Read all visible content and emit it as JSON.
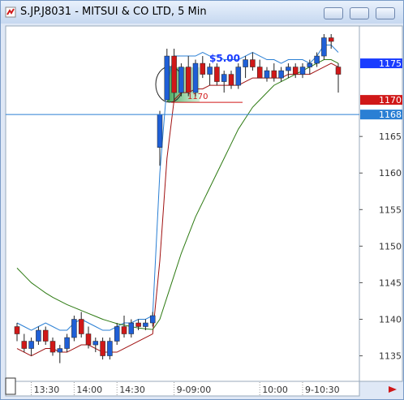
{
  "window_title": "S.JP.J8031 - MITSUI & CO LTD, 5 Min",
  "chart_data": {
    "type": "candlestick",
    "categories": [
      null,
      null,
      "13:30",
      null,
      null,
      null,
      null,
      null,
      "14:00",
      null,
      null,
      null,
      null,
      null,
      "14:30",
      null,
      null,
      null,
      null,
      null,
      null,
      null,
      "9-09:00",
      null,
      null,
      null,
      null,
      null,
      null,
      null,
      null,
      null,
      null,
      null,
      "10:00",
      null,
      null,
      null,
      null,
      null,
      "9-10:30",
      null,
      null,
      null,
      null,
      null
    ],
    "open": [
      1139,
      1137,
      1136,
      1137,
      1138.5,
      1137,
      1135.5,
      1136,
      1137.5,
      1140,
      1138,
      1136.5,
      1137,
      1135,
      1137,
      1139,
      1138,
      1139.5,
      1139,
      1139.5,
      1163.5,
      1170,
      1176,
      1171,
      1174.5,
      1171,
      1175,
      1173.5,
      1174.5,
      1172.5,
      1173.5,
      1172,
      1174.5,
      1175.5,
      1174.5,
      1173,
      1174,
      1173,
      1174,
      1174.5,
      1173.5,
      1174.5,
      1175,
      1176,
      1178.5,
      1174.5
    ],
    "high": [
      1139.5,
      1138,
      1137.5,
      1139,
      1139,
      1137.5,
      1136.5,
      1138,
      1140.5,
      1141,
      1139,
      1137.5,
      1137.5,
      1137.5,
      1139.5,
      1140.5,
      1140,
      1140,
      1140,
      1141,
      1168.5,
      1177,
      1177,
      1175,
      1176,
      1175.5,
      1176,
      1175,
      1175,
      1174,
      1174,
      1175,
      1176,
      1176.5,
      1175.5,
      1174.5,
      1175,
      1174.5,
      1175,
      1175,
      1175,
      1175.5,
      1176.5,
      1179,
      1179,
      1175
    ],
    "low": [
      1137,
      1135.5,
      1135,
      1136.5,
      1136.5,
      1135,
      1134,
      1135.5,
      1137,
      1137.5,
      1136,
      1135.5,
      1134.5,
      1134.5,
      1136.5,
      1137.5,
      1137.5,
      1138.5,
      1138.5,
      1139,
      1161,
      1170,
      1170,
      1170.5,
      1170.5,
      1170.5,
      1173,
      1172,
      1172,
      1171,
      1171.5,
      1171.5,
      1173,
      1174,
      1173,
      1172.5,
      1172.5,
      1172.5,
      1173,
      1173,
      1173,
      1173.5,
      1174.5,
      1175.5,
      1177,
      1171
    ],
    "close": [
      1138,
      1136,
      1137,
      1138.5,
      1137,
      1135.5,
      1136,
      1137.5,
      1140,
      1138,
      1136.5,
      1137,
      1135,
      1137,
      1139,
      1138,
      1139.5,
      1139,
      1139.5,
      1140.5,
      1168,
      1176,
      1171,
      1174.5,
      1171,
      1175,
      1173.5,
      1174.5,
      1172.5,
      1173.5,
      1172,
      1174.5,
      1175.5,
      1174.5,
      1173,
      1174,
      1173,
      1174,
      1174.5,
      1173.5,
      1174.5,
      1175,
      1176,
      1178.5,
      1178,
      1173.5
    ],
    "up_color": "#1f5fd6",
    "down_color": "#d01818",
    "overlays": [
      {
        "color": "#2a7fd4",
        "values": [
          1139.5,
          1139,
          1138.5,
          1139,
          1139.5,
          1139,
          1138.5,
          1138.5,
          1139.5,
          1140,
          1139.5,
          1139,
          1138.5,
          1138.5,
          1139,
          1139.5,
          1139.5,
          1140,
          1140,
          1140.5,
          1160,
          1172,
          1176,
          1176,
          1176,
          1176,
          1176.5,
          1176,
          1176,
          1175.5,
          1175.5,
          1175.5,
          1176,
          1176.5,
          1176,
          1175.5,
          1175.5,
          1175,
          1175.5,
          1175.5,
          1175.5,
          1175,
          1176,
          1177.5,
          1177.5,
          1176.5
        ]
      },
      {
        "color": "#a01010",
        "values": [
          1136,
          1135.5,
          1135,
          1135.5,
          1136,
          1136,
          1135.5,
          1135.5,
          1136,
          1136.5,
          1136.5,
          1136,
          1135.5,
          1135.5,
          1135.5,
          1136,
          1136.5,
          1137,
          1137.5,
          1138,
          1148,
          1162,
          1170,
          1171,
          1171,
          1171.5,
          1171.5,
          1172,
          1172,
          1172,
          1172,
          1172,
          1172.5,
          1173,
          1173,
          1173,
          1173,
          1173,
          1173.5,
          1173.5,
          1173.5,
          1173.5,
          1174,
          1174.5,
          1175,
          1174.5
        ]
      },
      {
        "color": "#2d7a12",
        "values": [
          1147,
          1146,
          1145,
          1144.3,
          1143.6,
          1143,
          1142.5,
          1142,
          1141.6,
          1141.2,
          1140.8,
          1140.4,
          1140,
          1139.7,
          1139.4,
          1139.2,
          1139,
          1138.8,
          1138.7,
          1138.6,
          1140,
          1143,
          1146,
          1149,
          1151.5,
          1154,
          1156,
          1158,
          1160,
          1162,
          1164,
          1166,
          1167.5,
          1169,
          1170,
          1171,
          1172,
          1172.5,
          1173,
          1173.5,
          1174,
          1174.5,
          1175,
          1175.5,
          1175.5,
          1175
        ]
      }
    ],
    "ylim": [
      1131.4,
      1180
    ],
    "yticks": [
      1135,
      1140,
      1145,
      1150,
      1155,
      1160,
      1165
    ],
    "price_markers": [
      {
        "value": 1175,
        "color": "#1a3cff"
      },
      {
        "value": 1170,
        "color": "#d01818"
      },
      {
        "value": 1168,
        "color": "#2a7fd4"
      }
    ],
    "level_line": {
      "value": 1170,
      "color": "#d01818"
    },
    "annotation": {
      "text": "$5.00",
      "color": "#1a3cff"
    }
  }
}
